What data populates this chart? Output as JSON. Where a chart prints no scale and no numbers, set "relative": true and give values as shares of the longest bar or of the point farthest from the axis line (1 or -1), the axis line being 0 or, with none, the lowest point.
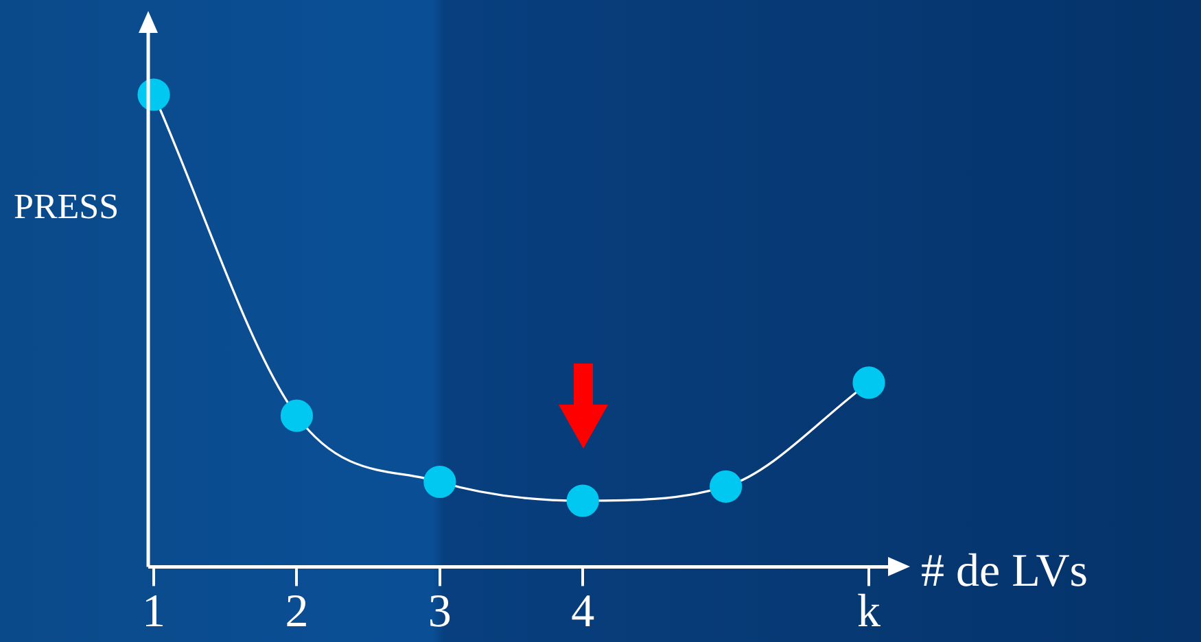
{
  "chart_data": {
    "type": "line",
    "relative": true,
    "xlabel": "# de LVs",
    "ylabel": "PRESS",
    "categories": [
      "1",
      "2",
      "3",
      "4",
      null,
      "k"
    ],
    "series": [
      {
        "color": "#00c8f0",
        "values": [
          1,
          0.32,
          0.18,
          0.14,
          0.17,
          0.39
        ]
      }
    ],
    "marker": "circle",
    "line_style": "solid",
    "legend": false,
    "grid": false
  }
}
